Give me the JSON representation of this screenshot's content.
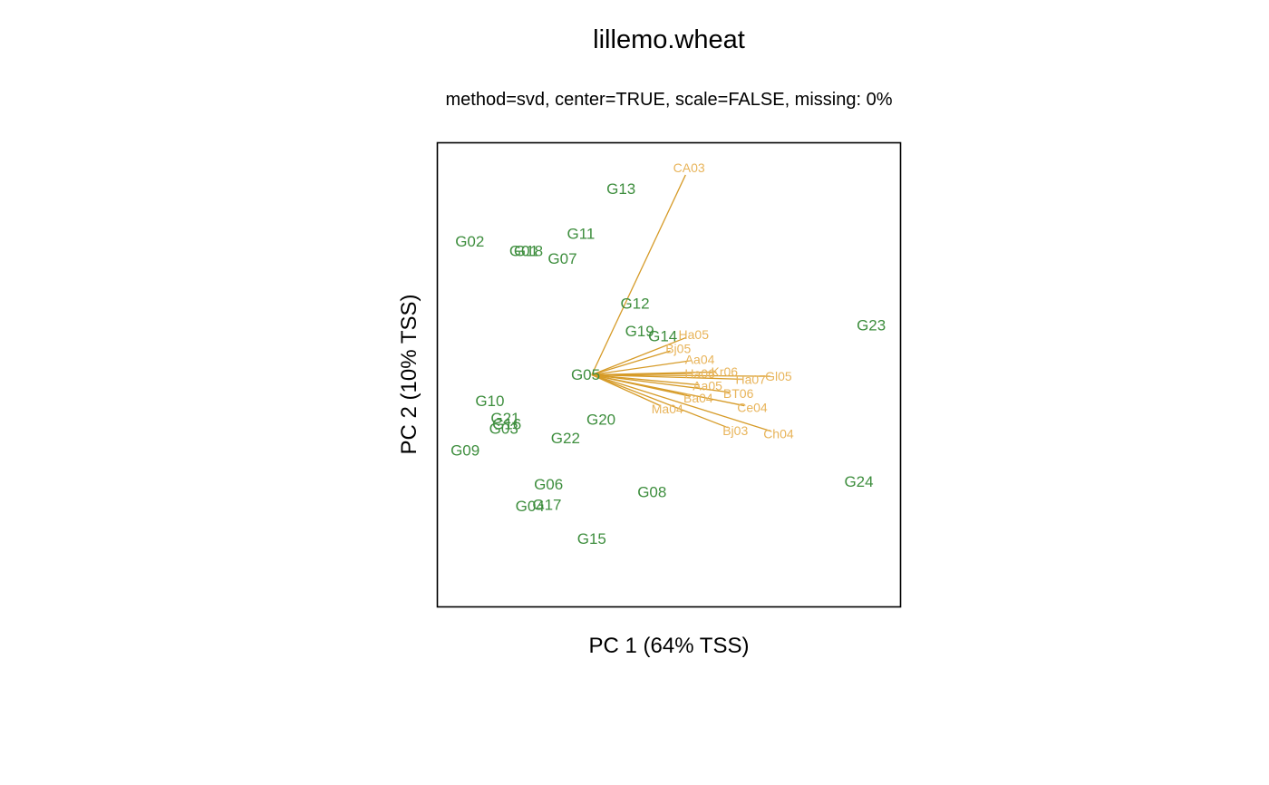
{
  "colors": {
    "genotype": "#3E8E3E",
    "environment_label": "#E8B45A",
    "environment_vector": "#D69B28",
    "frame": "#000000"
  },
  "chart_data": {
    "type": "scatter",
    "title": "lillemo.wheat",
    "subtitle": "method=svd, center=TRUE, scale=FALSE, missing: 0%",
    "xlabel": "PC 1 (64% TSS)",
    "ylabel": "PC 2 (10% TSS)",
    "xlim": [
      -1.0,
      2.0
    ],
    "ylim": [
      -1.5,
      1.5
    ],
    "origin": [
      0,
      0
    ],
    "axis_ticks": "none",
    "grid": false,
    "genotypes": [
      {
        "name": "G01",
        "x": -0.44,
        "y": 0.8
      },
      {
        "name": "G02",
        "x": -0.79,
        "y": 0.86
      },
      {
        "name": "G03",
        "x": -0.57,
        "y": -0.35
      },
      {
        "name": "G04",
        "x": -0.4,
        "y": -0.85
      },
      {
        "name": "G05",
        "x": -0.04,
        "y": 0.0
      },
      {
        "name": "G06",
        "x": -0.28,
        "y": -0.71
      },
      {
        "name": "G07",
        "x": -0.19,
        "y": 0.75
      },
      {
        "name": "G08",
        "x": 0.39,
        "y": -0.76
      },
      {
        "name": "G09",
        "x": -0.82,
        "y": -0.49
      },
      {
        "name": "G10",
        "x": -0.66,
        "y": -0.17
      },
      {
        "name": "G11",
        "x": -0.07,
        "y": 0.91
      },
      {
        "name": "G12",
        "x": 0.28,
        "y": 0.46
      },
      {
        "name": "G13",
        "x": 0.19,
        "y": 1.2
      },
      {
        "name": "G14",
        "x": 0.46,
        "y": 0.25
      },
      {
        "name": "G15",
        "x": 0.0,
        "y": -1.06
      },
      {
        "name": "G16",
        "x": -0.55,
        "y": -0.32
      },
      {
        "name": "G17",
        "x": -0.29,
        "y": -0.84
      },
      {
        "name": "G18",
        "x": -0.41,
        "y": 0.8
      },
      {
        "name": "G19",
        "x": 0.31,
        "y": 0.28
      },
      {
        "name": "G20",
        "x": 0.06,
        "y": -0.29
      },
      {
        "name": "G21",
        "x": -0.56,
        "y": -0.28
      },
      {
        "name": "G22",
        "x": -0.17,
        "y": -0.41
      },
      {
        "name": "G23",
        "x": 1.81,
        "y": 0.32
      },
      {
        "name": "G24",
        "x": 1.73,
        "y": -0.69
      }
    ],
    "environments": [
      {
        "name": "CA03",
        "x": 0.63,
        "y": 1.34
      },
      {
        "name": "Ha05",
        "x": 0.66,
        "y": 0.26
      },
      {
        "name": "Bj05",
        "x": 0.56,
        "y": 0.17
      },
      {
        "name": "Aa04",
        "x": 0.7,
        "y": 0.1
      },
      {
        "name": "Ha06",
        "x": 0.7,
        "y": 0.01
      },
      {
        "name": "Kr06",
        "x": 0.86,
        "y": 0.02
      },
      {
        "name": "Ha07",
        "x": 1.03,
        "y": -0.03
      },
      {
        "name": "Gl05",
        "x": 1.21,
        "y": -0.01
      },
      {
        "name": "Aa05",
        "x": 0.75,
        "y": -0.07
      },
      {
        "name": "Ba04",
        "x": 0.69,
        "y": -0.15
      },
      {
        "name": "BT06",
        "x": 0.95,
        "y": -0.12
      },
      {
        "name": "Ce04",
        "x": 1.04,
        "y": -0.21
      },
      {
        "name": "Ma04",
        "x": 0.49,
        "y": -0.22
      },
      {
        "name": "Bj03",
        "x": 0.93,
        "y": -0.36
      },
      {
        "name": "Ch04",
        "x": 1.21,
        "y": -0.38
      }
    ]
  }
}
